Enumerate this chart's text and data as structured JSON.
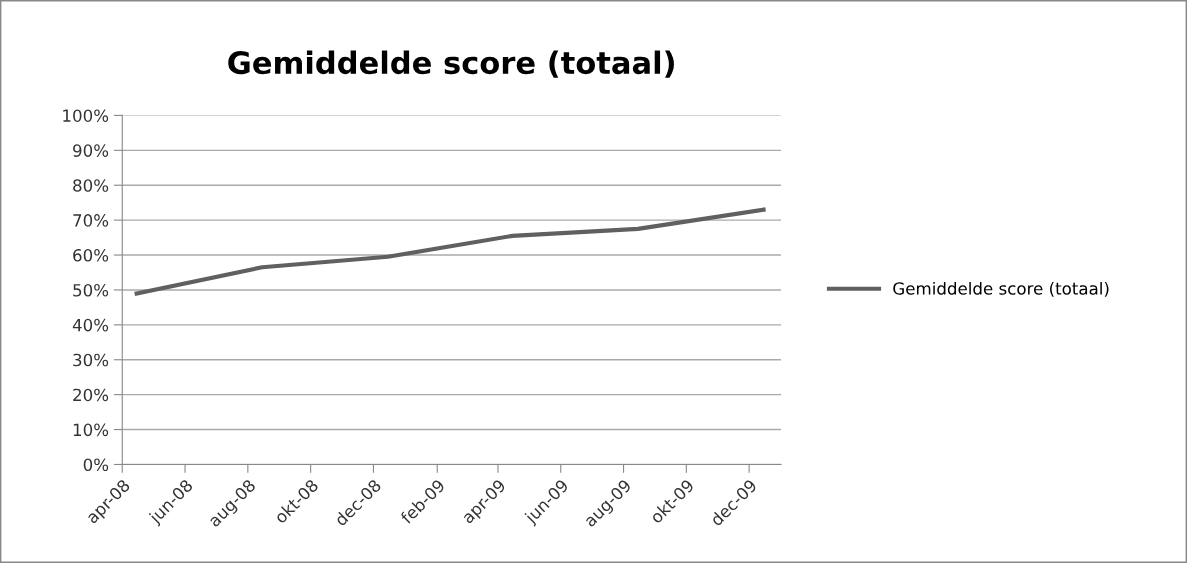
{
  "chart_data": {
    "type": "line",
    "title": "Gemiddelde score (totaal)",
    "x": [
      "2008-04-15",
      "2008-08-15",
      "2008-12-15",
      "2009-04-15",
      "2009-08-15",
      "2009-12-15"
    ],
    "series": [
      {
        "name": "Gemiddelde score (totaal)",
        "color": "#606060",
        "values": [
          49,
          56.5,
          59.5,
          65.5,
          67.5,
          73
        ]
      }
    ],
    "xlim": [
      "2008-04",
      "2010-01"
    ],
    "xticks": [
      {
        "value": "2008-04",
        "label": "apr-08"
      },
      {
        "value": "2008-06",
        "label": "jun-08"
      },
      {
        "value": "2008-08",
        "label": "aug-08"
      },
      {
        "value": "2008-10",
        "label": "okt-08"
      },
      {
        "value": "2008-12",
        "label": "dec-08"
      },
      {
        "value": "2009-02",
        "label": "feb-09"
      },
      {
        "value": "2009-04",
        "label": "apr-09"
      },
      {
        "value": "2009-06",
        "label": "jun-09"
      },
      {
        "value": "2009-08",
        "label": "aug-09"
      },
      {
        "value": "2009-10",
        "label": "okt-09"
      },
      {
        "value": "2009-12",
        "label": "dec-09"
      }
    ],
    "ylim": [
      0,
      100
    ],
    "yticks": [
      {
        "value": 0,
        "label": "0%"
      },
      {
        "value": 10,
        "label": "10%"
      },
      {
        "value": 20,
        "label": "20%"
      },
      {
        "value": 30,
        "label": "30%"
      },
      {
        "value": 40,
        "label": "40%"
      },
      {
        "value": 50,
        "label": "50%"
      },
      {
        "value": 60,
        "label": "60%"
      },
      {
        "value": 70,
        "label": "70%"
      },
      {
        "value": 80,
        "label": "80%"
      },
      {
        "value": 90,
        "label": "90%"
      },
      {
        "value": 100,
        "label": "100%"
      }
    ],
    "grid": "y",
    "legend": "right",
    "marker": "none",
    "line_style": "solid"
  }
}
